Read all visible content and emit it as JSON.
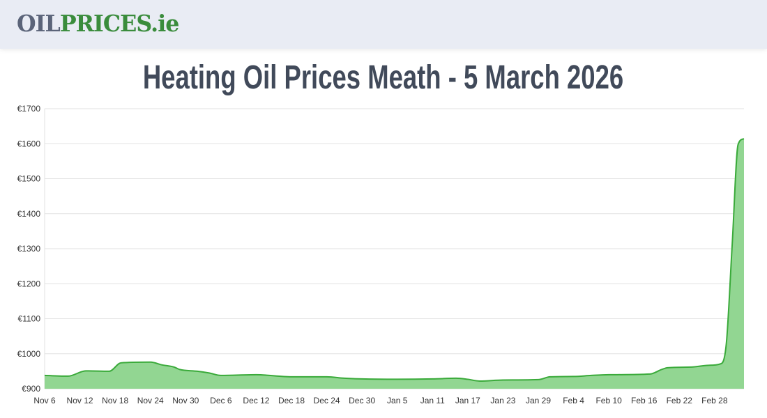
{
  "header": {
    "logo_part1": "OIL",
    "logo_part2": "PRICES.ie"
  },
  "page_title": "Heating Oil Prices Meath - 5 March 2026",
  "colors": {
    "line": "#3aaa3a",
    "fill": "#92d692",
    "grid": "#e2e2e2",
    "title": "#414a5a"
  },
  "chart_data": {
    "type": "area",
    "title": "Heating Oil Prices Meath - 5 March 2026",
    "ylim": [
      900,
      1700
    ],
    "grid": true,
    "y_ticks": [
      "€900",
      "€1000",
      "€1100",
      "€1200",
      "€1300",
      "€1400",
      "€1500",
      "€1600",
      "€1700"
    ],
    "y_tick_values": [
      900,
      1000,
      1100,
      1200,
      1300,
      1400,
      1500,
      1600,
      1700
    ],
    "x_ticks": [
      "Nov 6",
      "Nov 12",
      "Nov 18",
      "Nov 24",
      "Nov 30",
      "Dec 6",
      "Dec 12",
      "Dec 18",
      "Dec 24",
      "Dec 30",
      "Jan 5",
      "Jan 11",
      "Jan 17",
      "Jan 23",
      "Jan 29",
      "Feb 4",
      "Feb 10",
      "Feb 16",
      "Feb 22",
      "Feb 28"
    ],
    "x_tick_dates": [
      "2025-11-06",
      "2025-11-12",
      "2025-11-18",
      "2025-11-24",
      "2025-11-30",
      "2025-12-06",
      "2025-12-12",
      "2025-12-18",
      "2025-12-24",
      "2025-12-30",
      "2026-01-05",
      "2026-01-11",
      "2026-01-17",
      "2026-01-23",
      "2026-01-29",
      "2026-02-04",
      "2026-02-10",
      "2026-02-16",
      "2026-02-22",
      "2026-02-28"
    ],
    "xlim": [
      "2025-11-06",
      "2026-03-05"
    ],
    "points": [
      [
        "2025-11-06",
        938
      ],
      [
        "2025-11-10",
        936
      ],
      [
        "2025-11-13",
        951
      ],
      [
        "2025-11-17",
        950
      ],
      [
        "2025-11-19",
        974
      ],
      [
        "2025-11-24",
        976
      ],
      [
        "2025-11-26",
        968
      ],
      [
        "2025-11-28",
        962
      ],
      [
        "2025-11-29",
        955
      ],
      [
        "2025-12-02",
        950
      ],
      [
        "2025-12-04",
        945
      ],
      [
        "2025-12-06",
        938
      ],
      [
        "2025-12-12",
        940
      ],
      [
        "2025-12-18",
        934
      ],
      [
        "2025-12-24",
        934
      ],
      [
        "2025-12-27",
        930
      ],
      [
        "2025-12-30",
        928
      ],
      [
        "2026-01-05",
        927
      ],
      [
        "2026-01-11",
        928
      ],
      [
        "2026-01-15",
        930
      ],
      [
        "2026-01-17",
        927
      ],
      [
        "2026-01-19",
        922
      ],
      [
        "2026-01-23",
        925
      ],
      [
        "2026-01-29",
        926
      ],
      [
        "2026-01-31",
        934
      ],
      [
        "2026-02-04",
        935
      ],
      [
        "2026-02-07",
        938
      ],
      [
        "2026-02-10",
        940
      ],
      [
        "2026-02-17",
        942
      ],
      [
        "2026-02-19",
        955
      ],
      [
        "2026-02-20",
        960
      ],
      [
        "2026-02-24",
        962
      ],
      [
        "2026-02-27",
        967
      ],
      [
        "2026-03-01",
        971
      ],
      [
        "2026-03-02",
        1030
      ],
      [
        "2026-03-03",
        1314
      ],
      [
        "2026-03-04",
        1598
      ],
      [
        "2026-03-05",
        1614
      ]
    ]
  }
}
